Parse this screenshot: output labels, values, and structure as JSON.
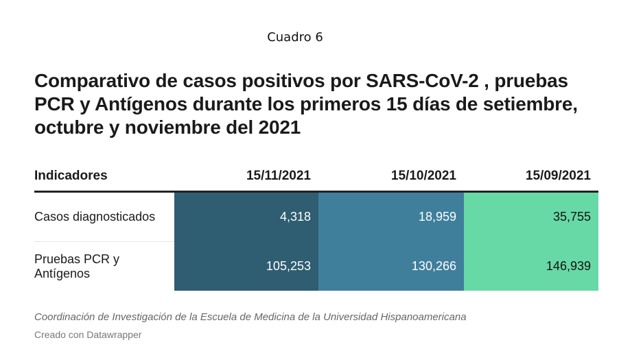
{
  "header": {
    "cuadro": "Cuadro 6",
    "title": "Comparativo de casos positivos por SARS-CoV-2 , pruebas PCR y Antígenos durante los primeros 15 días de setiembre, octubre y noviembre del 2021"
  },
  "chart_data": {
    "type": "table",
    "title": "Comparativo de casos positivos por SARS-CoV-2 , pruebas PCR y Antígenos durante los primeros 15 días de setiembre, octubre y noviembre del 2021",
    "columns": [
      "Indicadores",
      "15/11/2021",
      "15/10/2021",
      "15/09/2021"
    ],
    "rows": [
      {
        "label": "Casos diagnosticados",
        "display": [
          "4,318",
          "18,959",
          "35,755"
        ],
        "values": [
          4318,
          18959,
          35755
        ]
      },
      {
        "label": "Pruebas PCR y Antígenos",
        "display": [
          "105,253",
          "130,266",
          "146,939"
        ],
        "values": [
          105253,
          130266,
          146939
        ]
      }
    ],
    "column_colors": [
      "#2f5d71",
      "#3f7f9c",
      "#67d9a6"
    ],
    "column_text_colors": [
      "#ffffff",
      "#ffffff",
      "#111111"
    ]
  },
  "footer": {
    "source": "Coordinación de Investigación de la Escuela de Medicina de la Universidad Hispanoamericana",
    "credit": "Creado con Datawrapper"
  }
}
